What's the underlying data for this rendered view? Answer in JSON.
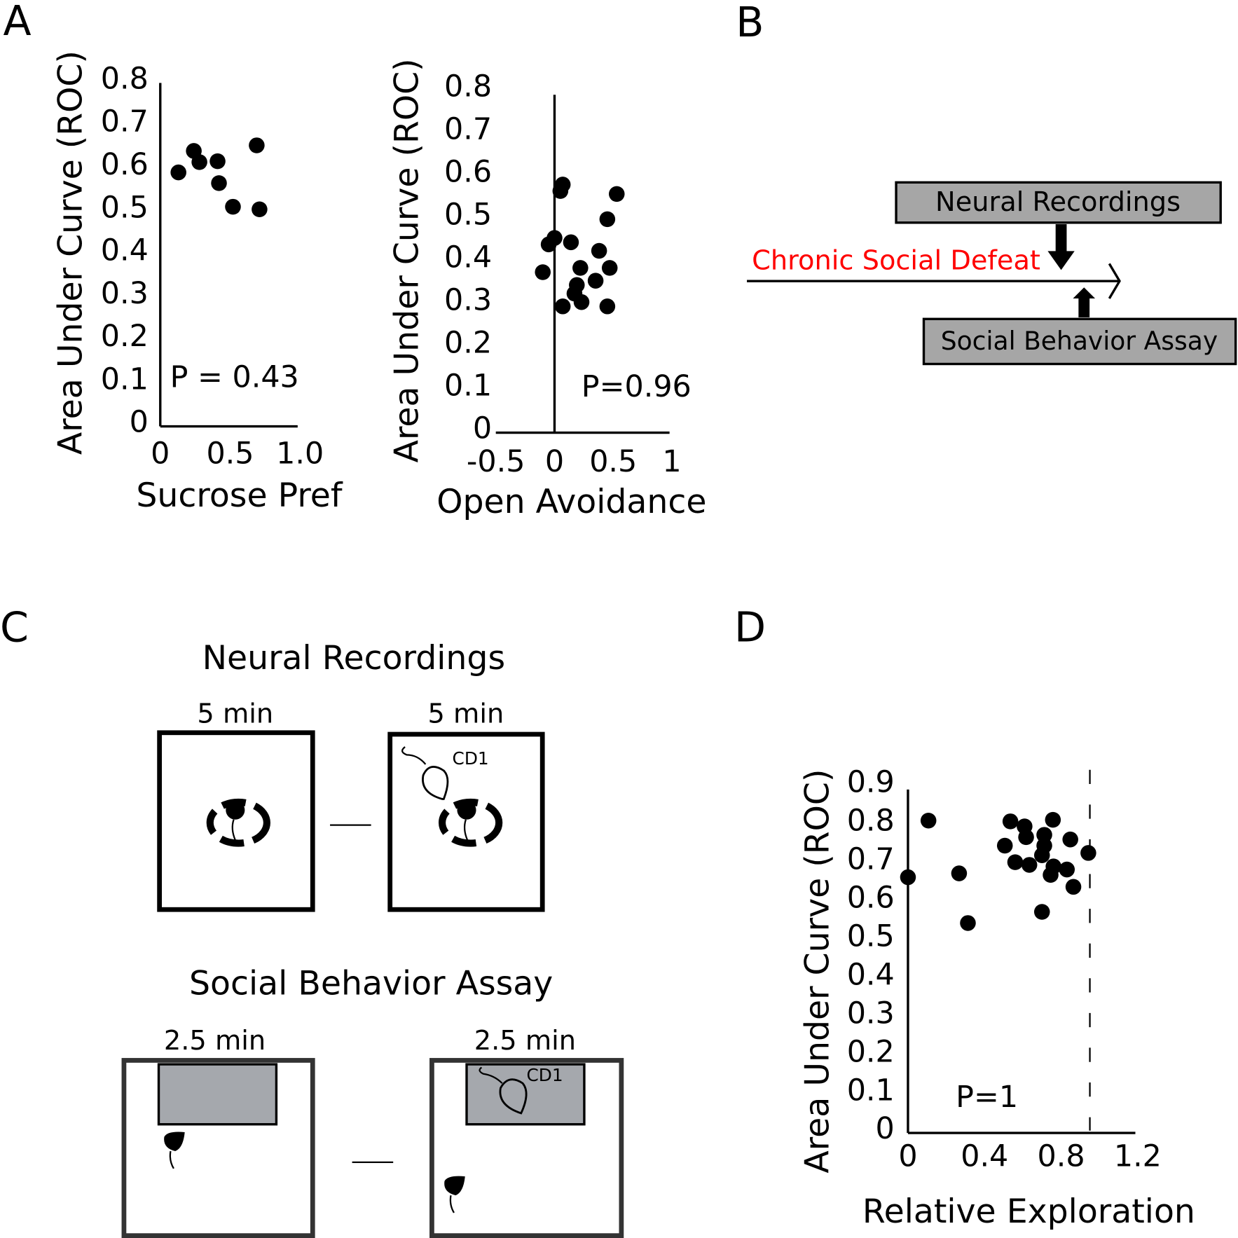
{
  "panel_labels": [
    "A",
    "B",
    "C",
    "D"
  ],
  "chart_data": [
    {
      "type": "scatter",
      "x_label": "Sucrose Pref",
      "y_label": "Area Under Curve (ROC)",
      "annotation": "P = 0.43",
      "x": [
        0.13,
        0.24,
        0.28,
        0.41,
        0.42,
        0.52,
        0.69,
        0.71
      ],
      "values": [
        0.586,
        0.636,
        0.61,
        0.612,
        0.561,
        0.506,
        0.649,
        0.5
      ],
      "color": "#000000",
      "xlim": [
        0,
        1
      ],
      "xticks": [
        0,
        0.5,
        {
          "value": 1,
          "label": "1.0"
        }
      ],
      "ylim": [
        0,
        0.8
      ],
      "yticks": [
        0,
        0.1,
        0.2,
        0.3,
        0.4,
        0.5,
        0.6,
        0.7,
        0.8
      ]
    },
    {
      "type": "scatter",
      "x_label": "Open Avoidance",
      "y_label": "Area Under Curve (ROC)",
      "annotation": "P=0.96",
      "x": [
        0.07,
        0.05,
        0.53,
        0.45,
        0,
        -0.05,
        0.14,
        0.38,
        -0.1,
        0.22,
        0.47,
        0.19,
        0.35,
        0.17,
        0.23,
        0.07,
        0.45
      ],
      "values": [
        0.575,
        0.56,
        0.553,
        0.494,
        0.45,
        0.435,
        0.44,
        0.42,
        0.37,
        0.38,
        0.38,
        0.34,
        0.35,
        0.32,
        0.3,
        0.29,
        0.29
      ],
      "color": "#000000",
      "xlim": [
        -0.5,
        1
      ],
      "xticks": [
        -0.5,
        0,
        0.5,
        1
      ],
      "ylim": [
        0,
        0.8
      ],
      "yticks": [
        0,
        0.1,
        0.2,
        0.3,
        0.4,
        0.5,
        0.6,
        0.7,
        0.8
      ]
    },
    {
      "type": "scatter",
      "x_label": "Relative Exploration",
      "y_label": "Area Under Curve (ROC)",
      "annotation": "P=1",
      "x": [
        0,
        0.107,
        0.267,
        0.313,
        0.535,
        0.506,
        0.56,
        0.609,
        0.617,
        0.634,
        0.712,
        0.712,
        0.7,
        0.757,
        0.745,
        0.76,
        0.7,
        0.848,
        0.83,
        0.864,
        0.942
      ],
      "values": [
        0.658,
        0.805,
        0.668,
        0.539,
        0.803,
        0.74,
        0.697,
        0.79,
        0.762,
        0.69,
        0.768,
        0.74,
        0.715,
        0.807,
        0.664,
        0.686,
        0.568,
        0.756,
        0.678,
        0.633,
        0.721
      ],
      "color": "#000000",
      "vline": 0.95,
      "xlim": [
        0,
        1.2
      ],
      "xticks": [
        0,
        0.4,
        0.8,
        1.2
      ],
      "ylim": [
        0,
        0.9
      ],
      "yticks": [
        0,
        0.1,
        0.2,
        0.3,
        0.4,
        0.5,
        0.6,
        0.7,
        0.8,
        0.9
      ]
    }
  ],
  "diagram_b": {
    "top_box": "Neural Recordings",
    "timeline": "Chronic Social Defeat",
    "bottom_box": "Social Behavior Assay"
  },
  "diagram_c": {
    "title_1": "Neural Recordings",
    "dur_1a": "5 min",
    "dur_1b": "5 min",
    "cd1_1": "CD1",
    "title_2": "Social Behavior Assay",
    "dur_2a": "2.5 min",
    "dur_2b": "2.5 min",
    "cd1_2": "CD1"
  }
}
